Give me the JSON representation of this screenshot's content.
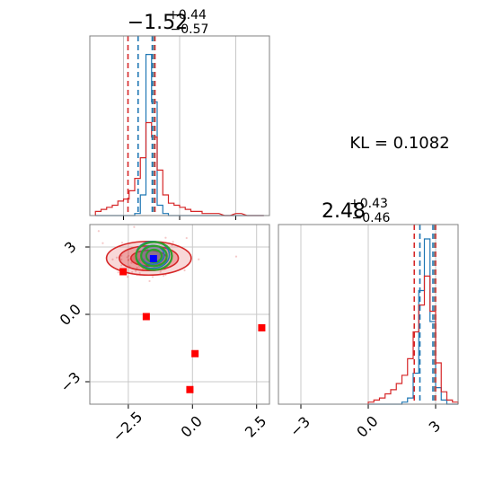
{
  "kl_label": "KL = 0.1082",
  "colors": {
    "blue": "#1f77b4",
    "red": "#d62728",
    "green": "#2ca02c",
    "marker_red": "#ff0000",
    "marker_blue": "#0000ff",
    "grid": "#c8c8c8",
    "axis": "#808080"
  },
  "chart_data": [
    {
      "type": "histogram",
      "panel": "marginal-x",
      "title": "−1.52",
      "title_sup": "+0.44",
      "title_sub": "−0.57",
      "xlim": [
        -4.0,
        4.0
      ],
      "x_ticks": [
        -2.5,
        0.0,
        2.5
      ],
      "bins_x": [
        -3.75,
        -3.5,
        -3.25,
        -3.0,
        -2.75,
        -2.5,
        -2.25,
        -2.0,
        -1.75,
        -1.5,
        -1.25,
        -1.0,
        -0.75,
        -0.5,
        -0.25,
        0.0,
        0.25,
        0.5,
        0.75,
        1.0,
        1.5,
        2.0,
        2.5,
        3.0,
        3.5
      ],
      "series": [
        {
          "color": "blue",
          "values": [
            0,
            0,
            0,
            0,
            0,
            0,
            0,
            0.01,
            0.1,
            0.78,
            0.55,
            0.05,
            0.01,
            0,
            0,
            0,
            0,
            0,
            0,
            0,
            0,
            0,
            0,
            0,
            0
          ]
        },
        {
          "color": "red",
          "values": [
            0.02,
            0.03,
            0.04,
            0.05,
            0.07,
            0.08,
            0.12,
            0.18,
            0.28,
            0.45,
            0.38,
            0.22,
            0.1,
            0.06,
            0.05,
            0.04,
            0.03,
            0.02,
            0.02,
            0.01,
            0.01,
            0,
            0.01,
            0,
            0
          ]
        }
      ],
      "quantile_lines": [
        {
          "color": "red",
          "x": -2.3
        },
        {
          "color": "blue",
          "x": -1.85
        },
        {
          "color": "blue",
          "x": -1.22
        },
        {
          "color": "red",
          "x": -1.1
        },
        {
          "color": "axis",
          "x": -1.15
        }
      ]
    },
    {
      "type": "scatter",
      "panel": "joint",
      "xlim": [
        -4.0,
        3.0
      ],
      "ylim": [
        -4.0,
        4.0
      ],
      "x_ticks": [
        -2.5,
        0.0,
        2.5
      ],
      "y_ticks": [
        -3,
        0,
        3
      ],
      "contours": [
        {
          "color": "red",
          "fill": true,
          "cx": -1.7,
          "cy": 2.5,
          "rx": [
            1.65,
            1.15,
            0.7
          ],
          "ry": [
            0.75,
            0.55,
            0.35
          ]
        },
        {
          "color": "blue",
          "fill": true,
          "cx": -1.55,
          "cy": 2.65,
          "rx": [
            0.65,
            0.45
          ],
          "ry": [
            0.6,
            0.42
          ]
        },
        {
          "color": "green",
          "fill": false,
          "cx": -1.5,
          "cy": 2.6,
          "rx": [
            0.7,
            0.5,
            0.3
          ],
          "ry": [
            0.62,
            0.45,
            0.28
          ]
        }
      ],
      "square_markers": [
        {
          "x": -2.7,
          "y": 1.9,
          "color": "marker_red"
        },
        {
          "x": -1.8,
          "y": -0.1,
          "color": "marker_red"
        },
        {
          "x": 0.1,
          "y": -1.75,
          "color": "marker_red"
        },
        {
          "x": -0.1,
          "y": -3.35,
          "color": "marker_red"
        },
        {
          "x": 2.7,
          "y": -0.6,
          "color": "marker_red"
        },
        {
          "x": -1.52,
          "y": 2.48,
          "color": "marker_blue"
        }
      ]
    },
    {
      "type": "histogram",
      "panel": "marginal-y",
      "title": "2.48",
      "title_sup": "+0.43",
      "title_sub": "−0.46",
      "xlim": [
        -4.0,
        4.0
      ],
      "x_ticks": [
        -3,
        0,
        3
      ],
      "bins_x": [
        0.0,
        0.25,
        0.5,
        0.75,
        1.0,
        1.25,
        1.5,
        1.75,
        2.0,
        2.25,
        2.5,
        2.75,
        3.0,
        3.25,
        3.5,
        3.75
      ],
      "series": [
        {
          "color": "blue",
          "values": [
            0,
            0,
            0,
            0,
            0,
            0,
            0.01,
            0.03,
            0.15,
            0.55,
            0.8,
            0.4,
            0.08,
            0.02,
            0,
            0
          ]
        },
        {
          "color": "red",
          "values": [
            0.01,
            0.02,
            0.03,
            0.05,
            0.07,
            0.1,
            0.14,
            0.22,
            0.35,
            0.48,
            0.62,
            0.45,
            0.2,
            0.06,
            0.02,
            0.01
          ]
        }
      ],
      "quantile_lines": [
        {
          "color": "red",
          "x": 2.05
        },
        {
          "color": "blue",
          "x": 2.3
        },
        {
          "color": "blue",
          "x": 2.88
        },
        {
          "color": "red",
          "x": 3.0
        },
        {
          "color": "axis",
          "x": 2.95
        }
      ]
    }
  ]
}
